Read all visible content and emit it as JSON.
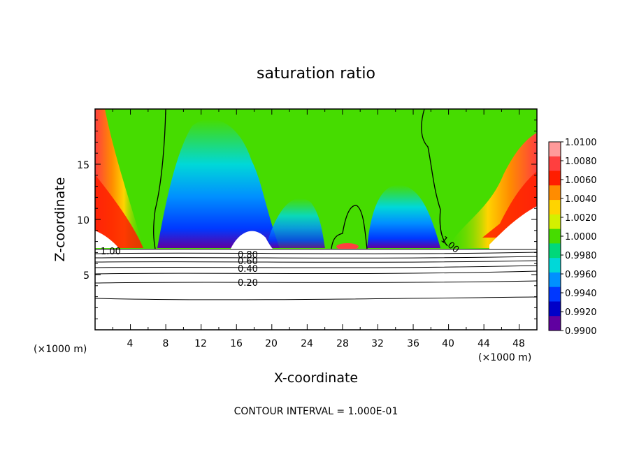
{
  "chart_data": {
    "type": "heatmap",
    "title": "saturation ratio",
    "xlabel": "X-coordinate",
    "ylabel": "Z-coordinate",
    "x_unit": "(×1000 m)",
    "y_unit": "(×1000 m)",
    "xlim": [
      0,
      50
    ],
    "ylim": [
      0,
      20
    ],
    "xticks": [
      "4",
      "8",
      "12",
      "16",
      "20",
      "24",
      "28",
      "32",
      "36",
      "40",
      "44",
      "48"
    ],
    "yticks": [
      "5",
      "10",
      "15"
    ],
    "colorbar": {
      "labels": [
        "1.0100",
        "1.0080",
        "1.0060",
        "1.0040",
        "1.0020",
        "1.0000",
        "0.9980",
        "0.9960",
        "0.9940",
        "0.9920",
        "0.9900"
      ],
      "colors": [
        "#ff9a9a",
        "#ff3f3f",
        "#ff1e00",
        "#ff8c00",
        "#ffd400",
        "#d4f000",
        "#46dc00",
        "#00d87a",
        "#00d8d8",
        "#0090ff",
        "#0038ff",
        "#0000c8",
        "#6000a0"
      ]
    },
    "contour_labels": [
      "1.00",
      "0.80",
      "0.60",
      "0.40",
      "0.20"
    ],
    "contour_interval": "CONTOUR INTERVAL = 1.000E-01"
  }
}
